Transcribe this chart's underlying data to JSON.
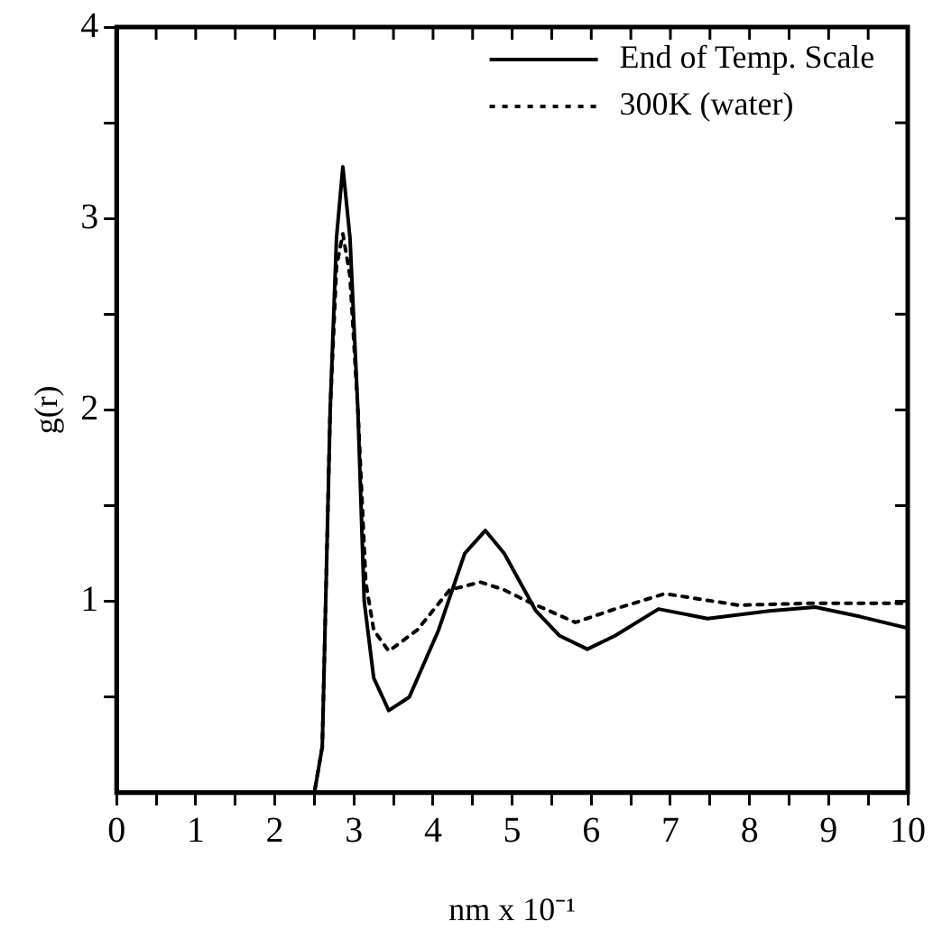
{
  "chart_data": {
    "type": "line",
    "xlabel": "nm x 10⁻¹",
    "ylabel": "g(r)",
    "xlim": [
      0,
      10
    ],
    "ylim": [
      0,
      4
    ],
    "xticks": [
      0,
      {
        "value": 0.5,
        "label": null
      },
      1,
      {
        "value": 1.5,
        "label": null
      },
      2,
      {
        "value": 2.5,
        "label": null
      },
      3,
      {
        "value": 3.5,
        "label": null
      },
      4,
      {
        "value": 4.5,
        "label": null
      },
      5,
      {
        "value": 5.5,
        "label": null
      },
      6,
      {
        "value": 6.5,
        "label": null
      },
      7,
      {
        "value": 7.5,
        "label": null
      },
      8,
      {
        "value": 8.5,
        "label": null
      },
      9,
      {
        "value": 9.5,
        "label": null
      },
      10
    ],
    "yticks": [
      {
        "value": 0.5,
        "label": null
      },
      1,
      {
        "value": 1.5,
        "label": null
      },
      2,
      {
        "value": 2.5,
        "label": null
      },
      3,
      {
        "value": 3.5,
        "label": null
      },
      4
    ],
    "grid": false,
    "legend": "top right",
    "marker": "none",
    "series": [
      {
        "name": "End of Temp. Scale",
        "color": "#000000",
        "line_style": "solid",
        "x": [
          0,
          2.5,
          2.6,
          2.7,
          2.78,
          2.86,
          2.95,
          3.05,
          3.13,
          3.25,
          3.44,
          3.7,
          4.07,
          4.4,
          4.66,
          4.9,
          5.3,
          5.6,
          5.95,
          6.3,
          6.85,
          7.47,
          8.25,
          8.83,
          9.4,
          10
        ],
        "values": [
          0,
          0,
          0.24,
          2.0,
          2.9,
          3.27,
          2.9,
          2.0,
          1.0,
          0.6,
          0.43,
          0.5,
          0.85,
          1.25,
          1.37,
          1.25,
          0.95,
          0.82,
          0.75,
          0.82,
          0.96,
          0.91,
          0.95,
          0.97,
          0.92,
          0.86
        ]
      },
      {
        "name": "300K (water)",
        "color": "#000000",
        "line_style": "dotted",
        "x": [
          0,
          2.5,
          2.6,
          2.7,
          2.78,
          2.86,
          2.95,
          3.05,
          3.15,
          3.25,
          3.44,
          3.8,
          4.21,
          4.6,
          4.9,
          5.14,
          5.8,
          6.3,
          6.93,
          7.86,
          8.8,
          10
        ],
        "values": [
          0,
          0,
          0.24,
          2.0,
          2.75,
          2.92,
          2.7,
          2.0,
          1.1,
          0.85,
          0.74,
          0.85,
          1.06,
          1.1,
          1.06,
          1.01,
          0.89,
          0.96,
          1.04,
          0.98,
          0.99,
          0.99
        ]
      }
    ]
  }
}
